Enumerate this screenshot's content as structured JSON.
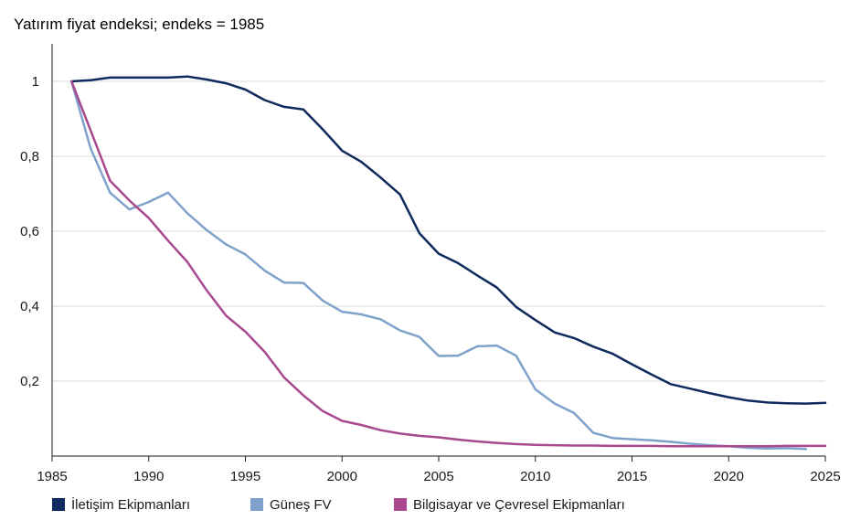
{
  "chart_data": {
    "type": "line",
    "title": "",
    "ylabel": "Yatırım fiyat endeksi; endeks = 1985",
    "xlabel": "",
    "xlim": [
      1985,
      2025
    ],
    "ylim": [
      0,
      1.1
    ],
    "x_ticks": [
      "1985",
      "1990",
      "1995",
      "2000",
      "2005",
      "2010",
      "2015",
      "2020",
      "2025"
    ],
    "y_ticks": [
      "0,2",
      "0,4",
      "0,6",
      "0,8",
      "1"
    ],
    "grid": true,
    "legend_position": "bottom",
    "series": [
      {
        "name": "İletişim Ekipmanları",
        "color": "#0f2a5c",
        "x": [
          1986,
          1987,
          1988,
          1989,
          1990,
          1991,
          1992,
          1993,
          1994,
          1995,
          1996,
          1997,
          1998,
          1999,
          2000,
          2001,
          2002,
          2003,
          2004,
          2005,
          2006,
          2007,
          2008,
          2009,
          2010,
          2011,
          2012,
          2013,
          2014,
          2015,
          2016,
          2017,
          2018,
          2019,
          2020,
          2021,
          2022,
          2023,
          2024,
          2025
        ],
        "y": [
          1.0,
          1.003,
          1.01,
          1.01,
          1.01,
          1.01,
          1.013,
          1.005,
          0.995,
          0.978,
          0.95,
          0.932,
          0.925,
          0.872,
          0.815,
          0.785,
          0.743,
          0.698,
          0.595,
          0.54,
          0.515,
          0.482,
          0.45,
          0.398,
          0.363,
          0.33,
          0.315,
          0.292,
          0.273,
          0.245,
          0.218,
          0.192,
          0.18,
          0.168,
          0.157,
          0.148,
          0.143,
          0.141,
          0.14,
          0.142
        ]
      },
      {
        "name": "Güneş FV",
        "color": "#7fa2cc",
        "x": [
          1986,
          1987,
          1988,
          1989,
          1990,
          1991,
          1992,
          1993,
          1994,
          1995,
          1996,
          1997,
          1998,
          1999,
          2000,
          2001,
          2002,
          2003,
          2004,
          2005,
          2006,
          2007,
          2008,
          2009,
          2010,
          2011,
          2012,
          2013,
          2014,
          2015,
          2016,
          2017,
          2018,
          2019,
          2020,
          2021,
          2022,
          2023,
          2024
        ],
        "y": [
          1.0,
          0.82,
          0.703,
          0.658,
          0.678,
          0.703,
          0.648,
          0.603,
          0.565,
          0.538,
          0.495,
          0.463,
          0.462,
          0.415,
          0.385,
          0.378,
          0.365,
          0.335,
          0.318,
          0.267,
          0.268,
          0.293,
          0.295,
          0.268,
          0.178,
          0.14,
          0.115,
          0.062,
          0.048,
          0.045,
          0.042,
          0.038,
          0.033,
          0.029,
          0.026,
          0.022,
          0.02,
          0.021,
          0.019
        ]
      },
      {
        "name": "Bilgisayar ve Çevresel Ekipmanları",
        "color": "#a8488e",
        "x": [
          1986,
          1987,
          1988,
          1989,
          1990,
          1991,
          1992,
          1993,
          1994,
          1995,
          1996,
          1997,
          1998,
          1999,
          2000,
          2001,
          2002,
          2003,
          2004,
          2005,
          2006,
          2007,
          2008,
          2009,
          2010,
          2011,
          2012,
          2013,
          2014,
          2015,
          2016,
          2017,
          2018,
          2019,
          2020,
          2021,
          2022,
          2023,
          2024,
          2025
        ],
        "y": [
          1.0,
          0.868,
          0.735,
          0.682,
          0.635,
          0.575,
          0.518,
          0.442,
          0.375,
          0.332,
          0.278,
          0.21,
          0.162,
          0.12,
          0.094,
          0.083,
          0.069,
          0.06,
          0.054,
          0.05,
          0.044,
          0.039,
          0.035,
          0.032,
          0.03,
          0.029,
          0.028,
          0.028,
          0.027,
          0.027,
          0.027,
          0.026,
          0.026,
          0.026,
          0.026,
          0.026,
          0.026,
          0.027,
          0.027,
          0.027
        ]
      }
    ]
  }
}
